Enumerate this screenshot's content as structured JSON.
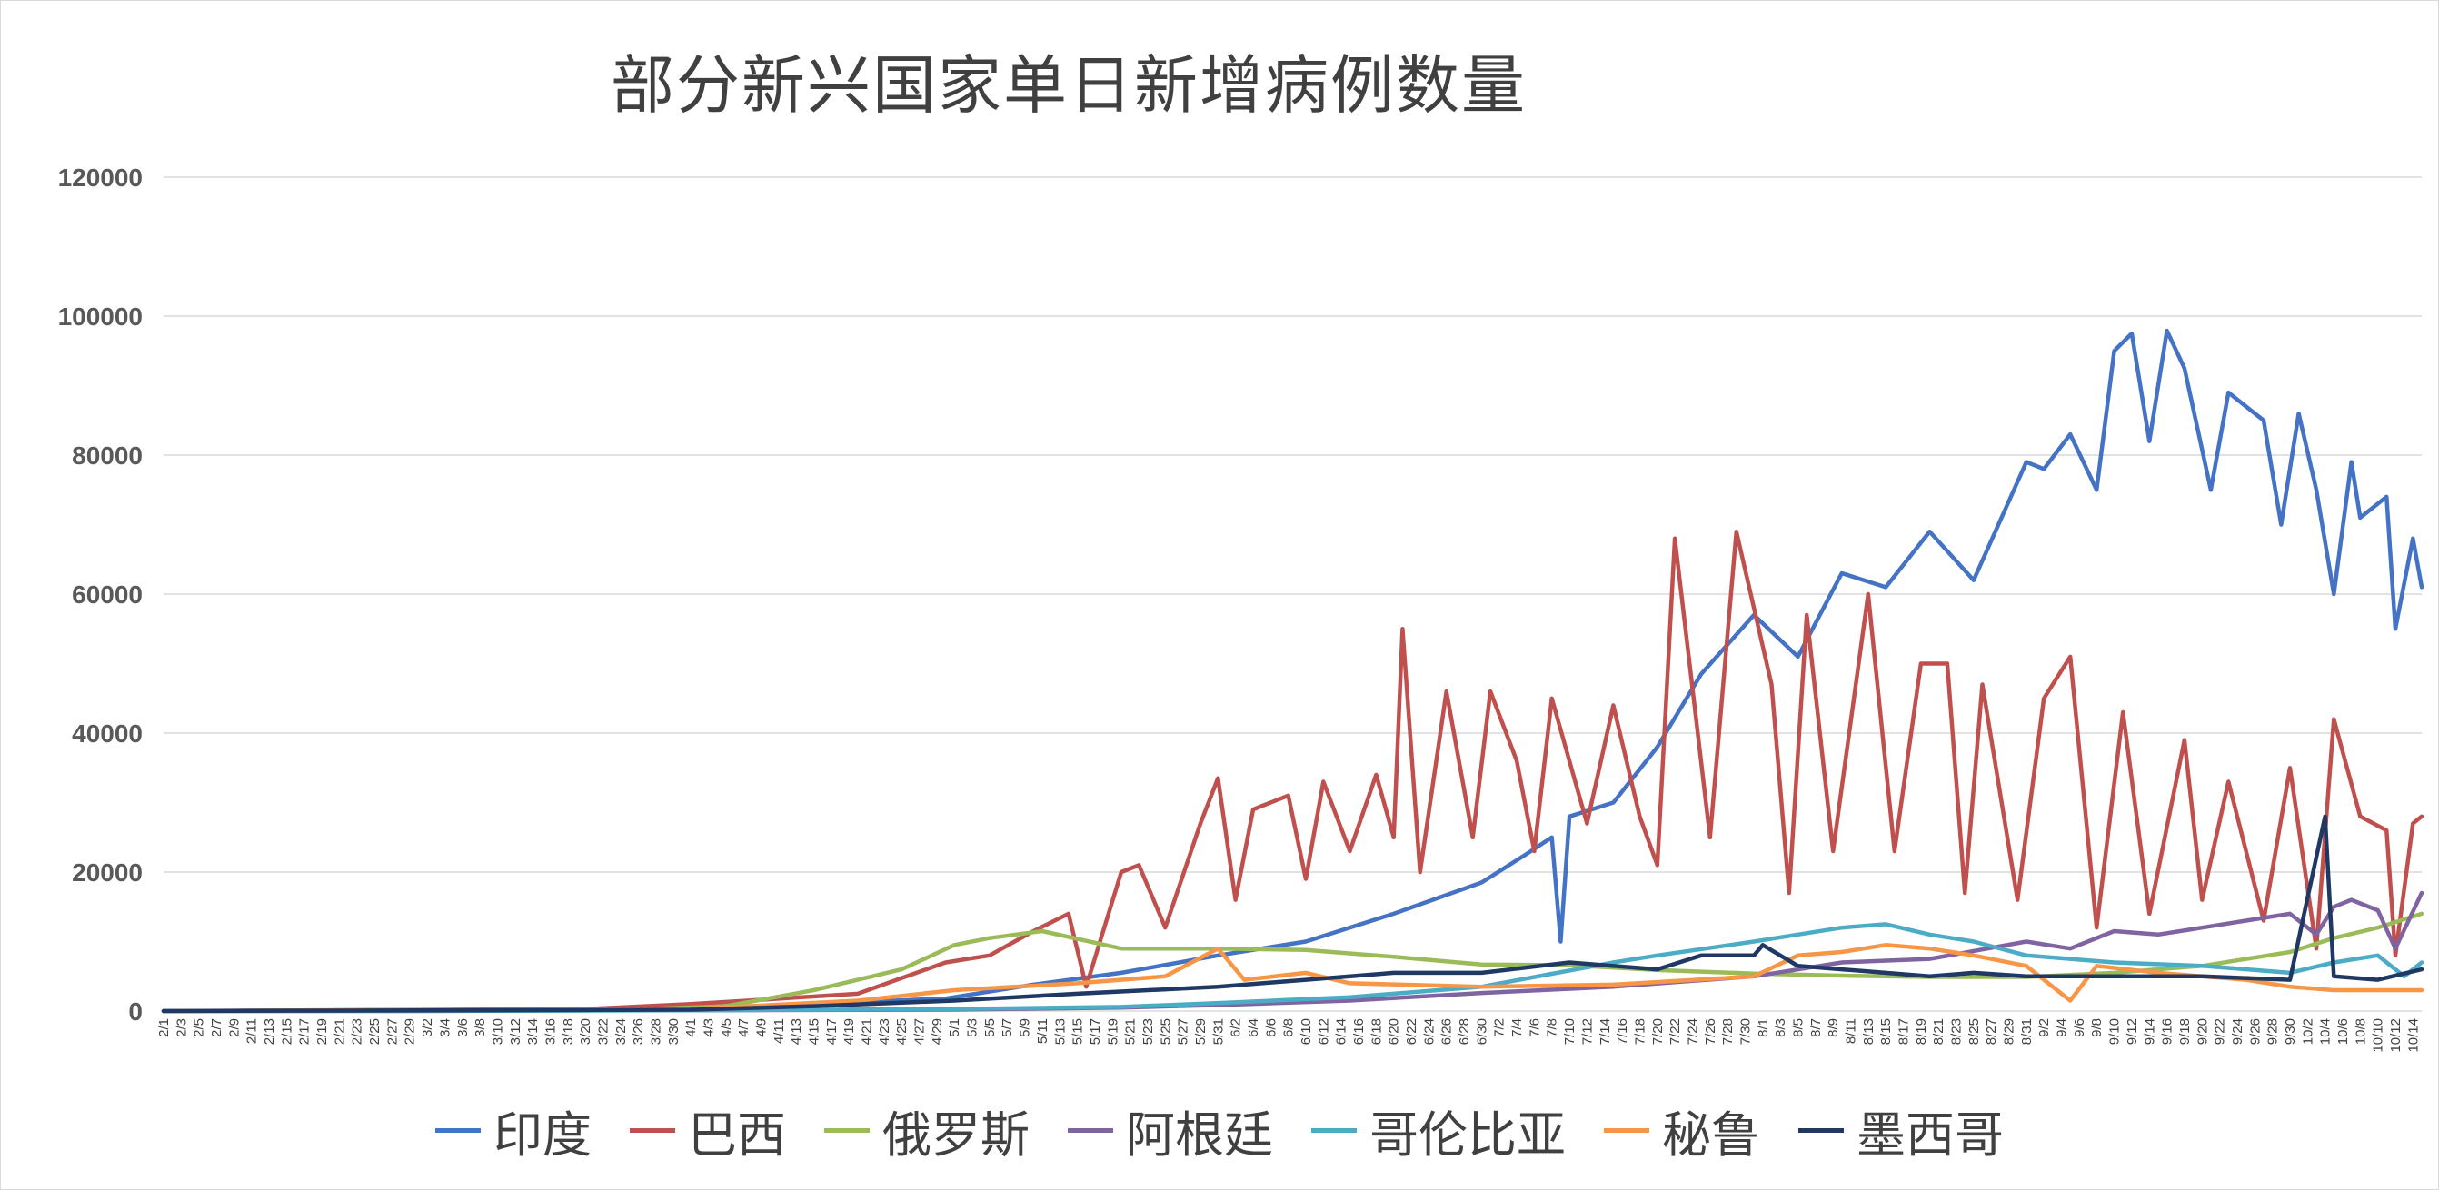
{
  "chart_data": {
    "type": "line",
    "title": "部分新兴国家单日新增病例数量",
    "ylim": [
      0,
      120000
    ],
    "yticks": [
      "0",
      "20000",
      "40000",
      "60000",
      "80000",
      "100000",
      "120000"
    ],
    "x_range": [
      "2/1",
      "10/15"
    ],
    "x_tick_labels": [
      "2/1",
      "2/3",
      "2/5",
      "2/7",
      "2/9",
      "2/11",
      "2/13",
      "2/15",
      "2/17",
      "2/19",
      "2/21",
      "2/23",
      "2/25",
      "2/27",
      "2/29",
      "3/2",
      "3/4",
      "3/6",
      "3/8",
      "3/10",
      "3/12",
      "3/14",
      "3/16",
      "3/18",
      "3/20",
      "3/22",
      "3/24",
      "3/26",
      "3/28",
      "3/30",
      "4/1",
      "4/3",
      "4/5",
      "4/7",
      "4/9",
      "4/11",
      "4/13",
      "4/15",
      "4/17",
      "4/19",
      "4/21",
      "4/23",
      "4/25",
      "4/27",
      "4/29",
      "5/1",
      "5/3",
      "5/5",
      "5/7",
      "5/9",
      "5/11",
      "5/13",
      "5/15",
      "5/17",
      "5/19",
      "5/21",
      "5/23",
      "5/25",
      "5/27",
      "5/29",
      "5/31",
      "6/2",
      "6/4",
      "6/6",
      "6/8",
      "6/10",
      "6/12",
      "6/14",
      "6/16",
      "6/18",
      "6/20",
      "6/22",
      "6/24",
      "6/26",
      "6/28",
      "6/30",
      "7/2",
      "7/4",
      "7/6",
      "7/8",
      "7/10",
      "7/12",
      "7/14",
      "7/16",
      "7/18",
      "7/20",
      "7/22",
      "7/24",
      "7/26",
      "7/28",
      "7/30",
      "8/1",
      "8/3",
      "8/5",
      "8/7",
      "8/9",
      "8/11",
      "8/13",
      "8/15",
      "8/17",
      "8/19",
      "8/21",
      "8/23",
      "8/25",
      "8/27",
      "8/29",
      "8/31",
      "9/2",
      "9/4",
      "9/6",
      "9/8",
      "9/10",
      "9/12",
      "9/14",
      "9/16",
      "9/18",
      "9/20",
      "9/22",
      "9/24",
      "9/26",
      "9/28",
      "9/30",
      "10/2",
      "10/4",
      "10/6",
      "10/8",
      "10/10",
      "10/12",
      "10/14"
    ],
    "grid": true,
    "legend_position": "bottom",
    "series": [
      {
        "name": "印度",
        "color": "#4472C4",
        "points": [
          [
            "2/1",
            0
          ],
          [
            "2/29",
            0
          ],
          [
            "3/20",
            80
          ],
          [
            "3/31",
            300
          ],
          [
            "4/10",
            800
          ],
          [
            "4/20",
            1300
          ],
          [
            "4/30",
            1800
          ],
          [
            "5/10",
            3800
          ],
          [
            "5/20",
            5500
          ],
          [
            "5/31",
            8000
          ],
          [
            "6/10",
            10000
          ],
          [
            "6/20",
            14000
          ],
          [
            "6/30",
            18500
          ],
          [
            "7/5",
            22500
          ],
          [
            "7/8",
            25000
          ],
          [
            "7/9",
            10000
          ],
          [
            "7/10",
            28000
          ],
          [
            "7/15",
            30000
          ],
          [
            "7/20",
            38000
          ],
          [
            "7/25",
            48500
          ],
          [
            "7/31",
            57000
          ],
          [
            "8/5",
            51000
          ],
          [
            "8/10",
            63000
          ],
          [
            "8/15",
            61000
          ],
          [
            "8/20",
            69000
          ],
          [
            "8/25",
            62000
          ],
          [
            "8/31",
            79000
          ],
          [
            "9/2",
            78000
          ],
          [
            "9/5",
            83000
          ],
          [
            "9/8",
            75000
          ],
          [
            "9/10",
            95000
          ],
          [
            "9/12",
            97500
          ],
          [
            "9/14",
            82000
          ],
          [
            "9/16",
            97900
          ],
          [
            "9/18",
            92500
          ],
          [
            "9/21",
            75000
          ],
          [
            "9/23",
            89000
          ],
          [
            "9/27",
            85000
          ],
          [
            "9/29",
            70000
          ],
          [
            "10/1",
            86000
          ],
          [
            "10/3",
            75000
          ],
          [
            "10/5",
            60000
          ],
          [
            "10/7",
            79000
          ],
          [
            "10/8",
            71000
          ],
          [
            "10/11",
            74000
          ],
          [
            "10/12",
            55000
          ],
          [
            "10/14",
            68000
          ],
          [
            "10/15",
            61000
          ]
        ]
      },
      {
        "name": "巴西",
        "color": "#C0504D",
        "points": [
          [
            "2/1",
            0
          ],
          [
            "3/20",
            300
          ],
          [
            "4/1",
            1000
          ],
          [
            "4/10",
            1700
          ],
          [
            "4/20",
            2500
          ],
          [
            "4/30",
            7000
          ],
          [
            "5/5",
            8000
          ],
          [
            "5/10",
            11500
          ],
          [
            "5/14",
            14000
          ],
          [
            "5/16",
            3500
          ],
          [
            "5/20",
            20000
          ],
          [
            "5/22",
            21000
          ],
          [
            "5/25",
            12000
          ],
          [
            "5/29",
            27000
          ],
          [
            "5/31",
            33500
          ],
          [
            "6/2",
            16000
          ],
          [
            "6/4",
            29000
          ],
          [
            "6/8",
            31000
          ],
          [
            "6/10",
            19000
          ],
          [
            "6/12",
            33000
          ],
          [
            "6/15",
            23000
          ],
          [
            "6/18",
            34000
          ],
          [
            "6/20",
            25000
          ],
          [
            "6/21",
            55000
          ],
          [
            "6/23",
            20000
          ],
          [
            "6/26",
            46000
          ],
          [
            "6/29",
            25000
          ],
          [
            "7/1",
            46000
          ],
          [
            "7/4",
            36000
          ],
          [
            "7/6",
            23000
          ],
          [
            "7/8",
            45000
          ],
          [
            "7/12",
            27000
          ],
          [
            "7/15",
            44000
          ],
          [
            "7/18",
            28000
          ],
          [
            "7/20",
            21000
          ],
          [
            "7/22",
            68000
          ],
          [
            "7/26",
            25000
          ],
          [
            "7/29",
            69000
          ],
          [
            "8/2",
            47000
          ],
          [
            "8/4",
            17000
          ],
          [
            "8/6",
            57000
          ],
          [
            "8/9",
            23000
          ],
          [
            "8/13",
            60000
          ],
          [
            "8/16",
            23000
          ],
          [
            "8/19",
            50000
          ],
          [
            "8/22",
            50000
          ],
          [
            "8/24",
            17000
          ],
          [
            "8/26",
            47000
          ],
          [
            "8/30",
            16000
          ],
          [
            "9/2",
            45000
          ],
          [
            "9/5",
            51000
          ],
          [
            "9/8",
            12000
          ],
          [
            "9/11",
            43000
          ],
          [
            "9/14",
            14000
          ],
          [
            "9/18",
            39000
          ],
          [
            "9/20",
            16000
          ],
          [
            "9/23",
            33000
          ],
          [
            "9/27",
            13000
          ],
          [
            "9/30",
            35000
          ],
          [
            "10/3",
            9000
          ],
          [
            "10/5",
            42000
          ],
          [
            "10/8",
            28000
          ],
          [
            "10/11",
            26000
          ],
          [
            "10/12",
            8000
          ],
          [
            "10/14",
            27000
          ],
          [
            "10/15",
            28000
          ]
        ]
      },
      {
        "name": "俄罗斯",
        "color": "#9BBB59",
        "points": [
          [
            "2/1",
            0
          ],
          [
            "3/25",
            200
          ],
          [
            "4/5",
            700
          ],
          [
            "4/15",
            3000
          ],
          [
            "4/20",
            4500
          ],
          [
            "4/25",
            6000
          ],
          [
            "5/1",
            9500
          ],
          [
            "5/5",
            10500
          ],
          [
            "5/11",
            11500
          ],
          [
            "5/20",
            9000
          ],
          [
            "5/31",
            9000
          ],
          [
            "6/10",
            8800
          ],
          [
            "6/20",
            7800
          ],
          [
            "6/30",
            6700
          ],
          [
            "7/10",
            6600
          ],
          [
            "7/20",
            5900
          ],
          [
            "7/31",
            5400
          ],
          [
            "8/10",
            5100
          ],
          [
            "8/20",
            4900
          ],
          [
            "8/31",
            4900
          ],
          [
            "9/10",
            5500
          ],
          [
            "9/20",
            6500
          ],
          [
            "9/30",
            8500
          ],
          [
            "10/5",
            10500
          ],
          [
            "10/10",
            12000
          ],
          [
            "10/15",
            14000
          ]
        ]
      },
      {
        "name": "阿根廷",
        "color": "#8064A2",
        "points": [
          [
            "2/1",
            0
          ],
          [
            "4/1",
            100
          ],
          [
            "5/1",
            200
          ],
          [
            "5/20",
            500
          ],
          [
            "6/1",
            900
          ],
          [
            "6/15",
            1500
          ],
          [
            "6/30",
            2600
          ],
          [
            "7/15",
            3500
          ],
          [
            "7/31",
            5000
          ],
          [
            "8/10",
            7000
          ],
          [
            "8/20",
            7500
          ],
          [
            "8/31",
            10000
          ],
          [
            "9/5",
            9000
          ],
          [
            "9/10",
            11500
          ],
          [
            "9/15",
            11000
          ],
          [
            "9/20",
            12000
          ],
          [
            "9/25",
            13000
          ],
          [
            "9/30",
            14000
          ],
          [
            "10/3",
            11000
          ],
          [
            "10/5",
            15000
          ],
          [
            "10/7",
            16000
          ],
          [
            "10/10",
            14500
          ],
          [
            "10/12",
            9000
          ],
          [
            "10/15",
            17000
          ]
        ]
      },
      {
        "name": "哥伦比亚",
        "color": "#4BACC6",
        "points": [
          [
            "2/1",
            0
          ],
          [
            "4/1",
            100
          ],
          [
            "5/1",
            300
          ],
          [
            "5/20",
            600
          ],
          [
            "6/1",
            1200
          ],
          [
            "6/15",
            2000
          ],
          [
            "6/30",
            3500
          ],
          [
            "7/15",
            7000
          ],
          [
            "7/20",
            8000
          ],
          [
            "7/31",
            10000
          ],
          [
            "8/5",
            11000
          ],
          [
            "8/10",
            12000
          ],
          [
            "8/15",
            12500
          ],
          [
            "8/20",
            11000
          ],
          [
            "8/25",
            10000
          ],
          [
            "8/31",
            8000
          ],
          [
            "9/5",
            7500
          ],
          [
            "9/10",
            7000
          ],
          [
            "9/20",
            6500
          ],
          [
            "9/30",
            5500
          ],
          [
            "10/5",
            7000
          ],
          [
            "10/10",
            8000
          ],
          [
            "10/13",
            5000
          ],
          [
            "10/15",
            7000
          ]
        ]
      },
      {
        "name": "秘鲁",
        "color": "#F79646",
        "points": [
          [
            "2/1",
            0
          ],
          [
            "4/1",
            300
          ],
          [
            "4/20",
            1500
          ],
          [
            "5/1",
            3000
          ],
          [
            "5/15",
            4000
          ],
          [
            "5/25",
            5000
          ],
          [
            "5/31",
            9000
          ],
          [
            "6/3",
            4500
          ],
          [
            "6/10",
            5500
          ],
          [
            "6/15",
            4000
          ],
          [
            "6/30",
            3500
          ],
          [
            "7/15",
            3800
          ],
          [
            "7/31",
            5000
          ],
          [
            "8/5",
            8000
          ],
          [
            "8/10",
            8500
          ],
          [
            "8/15",
            9500
          ],
          [
            "8/20",
            9000
          ],
          [
            "8/25",
            8000
          ],
          [
            "8/31",
            6500
          ],
          [
            "9/5",
            1500
          ],
          [
            "9/8",
            6500
          ],
          [
            "9/15",
            5500
          ],
          [
            "9/20",
            5000
          ],
          [
            "9/25",
            4500
          ],
          [
            "9/30",
            3500
          ],
          [
            "10/5",
            3000
          ],
          [
            "10/10",
            3000
          ],
          [
            "10/15",
            3000
          ]
        ]
      },
      {
        "name": "墨西哥",
        "color": "#1F3864",
        "points": [
          [
            "2/1",
            0
          ],
          [
            "4/1",
            200
          ],
          [
            "4/15",
            700
          ],
          [
            "5/1",
            1500
          ],
          [
            "5/15",
            2500
          ],
          [
            "5/31",
            3500
          ],
          [
            "6/10",
            4500
          ],
          [
            "6/20",
            5500
          ],
          [
            "6/30",
            5500
          ],
          [
            "7/10",
            7000
          ],
          [
            "7/20",
            6000
          ],
          [
            "7/25",
            8000
          ],
          [
            "7/31",
            8000
          ],
          [
            "8/1",
            9500
          ],
          [
            "8/5",
            6500
          ],
          [
            "8/10",
            6000
          ],
          [
            "8/15",
            5500
          ],
          [
            "8/20",
            5000
          ],
          [
            "8/25",
            5500
          ],
          [
            "8/31",
            5000
          ],
          [
            "9/10",
            5000
          ],
          [
            "9/20",
            5000
          ],
          [
            "9/30",
            4500
          ],
          [
            "10/4",
            28000
          ],
          [
            "10/5",
            5000
          ],
          [
            "10/10",
            4500
          ],
          [
            "10/15",
            6000
          ]
        ]
      }
    ]
  }
}
